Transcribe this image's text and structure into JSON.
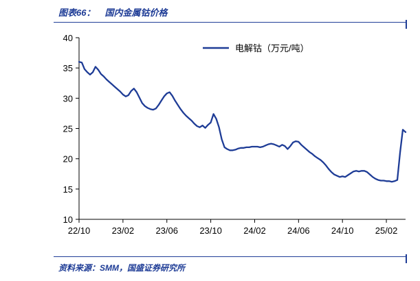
{
  "header": {
    "label": "图表66：",
    "title": "国内金属钴价格"
  },
  "footer": {
    "source": "资料来源：SMM，国盛证券研究所"
  },
  "colors": {
    "accent": "#1E3C96",
    "line": "#1E3C96",
    "axis": "#000000"
  },
  "chart_data": {
    "type": "line",
    "title": "国内金属钴价格",
    "xlabel": "",
    "ylabel": "",
    "ylim": [
      10,
      40
    ],
    "y_ticks": [
      10,
      15,
      20,
      25,
      30,
      35,
      40
    ],
    "x_tick_labels": [
      "22/10",
      "23/02",
      "23/06",
      "23/10",
      "24/02",
      "24/06",
      "24/10",
      "25/02"
    ],
    "x_tick_indices": [
      0,
      16,
      32,
      48,
      64,
      80,
      96,
      112
    ],
    "grid": false,
    "legend_position": "top-center",
    "series": [
      {
        "name": "电解钴（万元/吨）",
        "values": [
          36.0,
          35.9,
          34.8,
          34.3,
          33.9,
          34.3,
          35.2,
          34.7,
          34.0,
          33.6,
          33.1,
          32.7,
          32.3,
          31.9,
          31.5,
          31.1,
          30.6,
          30.3,
          30.5,
          31.2,
          31.6,
          31.0,
          30.1,
          29.2,
          28.7,
          28.4,
          28.2,
          28.1,
          28.3,
          28.9,
          29.6,
          30.3,
          30.8,
          31.0,
          30.4,
          29.6,
          28.9,
          28.2,
          27.6,
          27.1,
          26.7,
          26.3,
          25.8,
          25.4,
          25.2,
          25.5,
          25.1,
          25.6,
          26.0,
          27.4,
          26.6,
          25.2,
          23.2,
          21.9,
          21.6,
          21.4,
          21.4,
          21.5,
          21.7,
          21.8,
          21.8,
          21.9,
          21.9,
          22.0,
          22.0,
          22.0,
          21.9,
          22.0,
          22.2,
          22.4,
          22.5,
          22.4,
          22.2,
          22.0,
          22.3,
          22.1,
          21.6,
          22.1,
          22.7,
          22.9,
          22.8,
          22.3,
          21.9,
          21.5,
          21.1,
          20.8,
          20.4,
          20.1,
          19.8,
          19.4,
          18.9,
          18.3,
          17.8,
          17.4,
          17.2,
          17.0,
          17.1,
          17.0,
          17.3,
          17.6,
          17.9,
          18.0,
          17.9,
          18.0,
          18.0,
          17.8,
          17.4,
          17.0,
          16.7,
          16.5,
          16.4,
          16.4,
          16.3,
          16.3,
          16.2,
          16.3,
          16.5,
          21.0,
          24.8,
          24.4
        ]
      }
    ]
  }
}
